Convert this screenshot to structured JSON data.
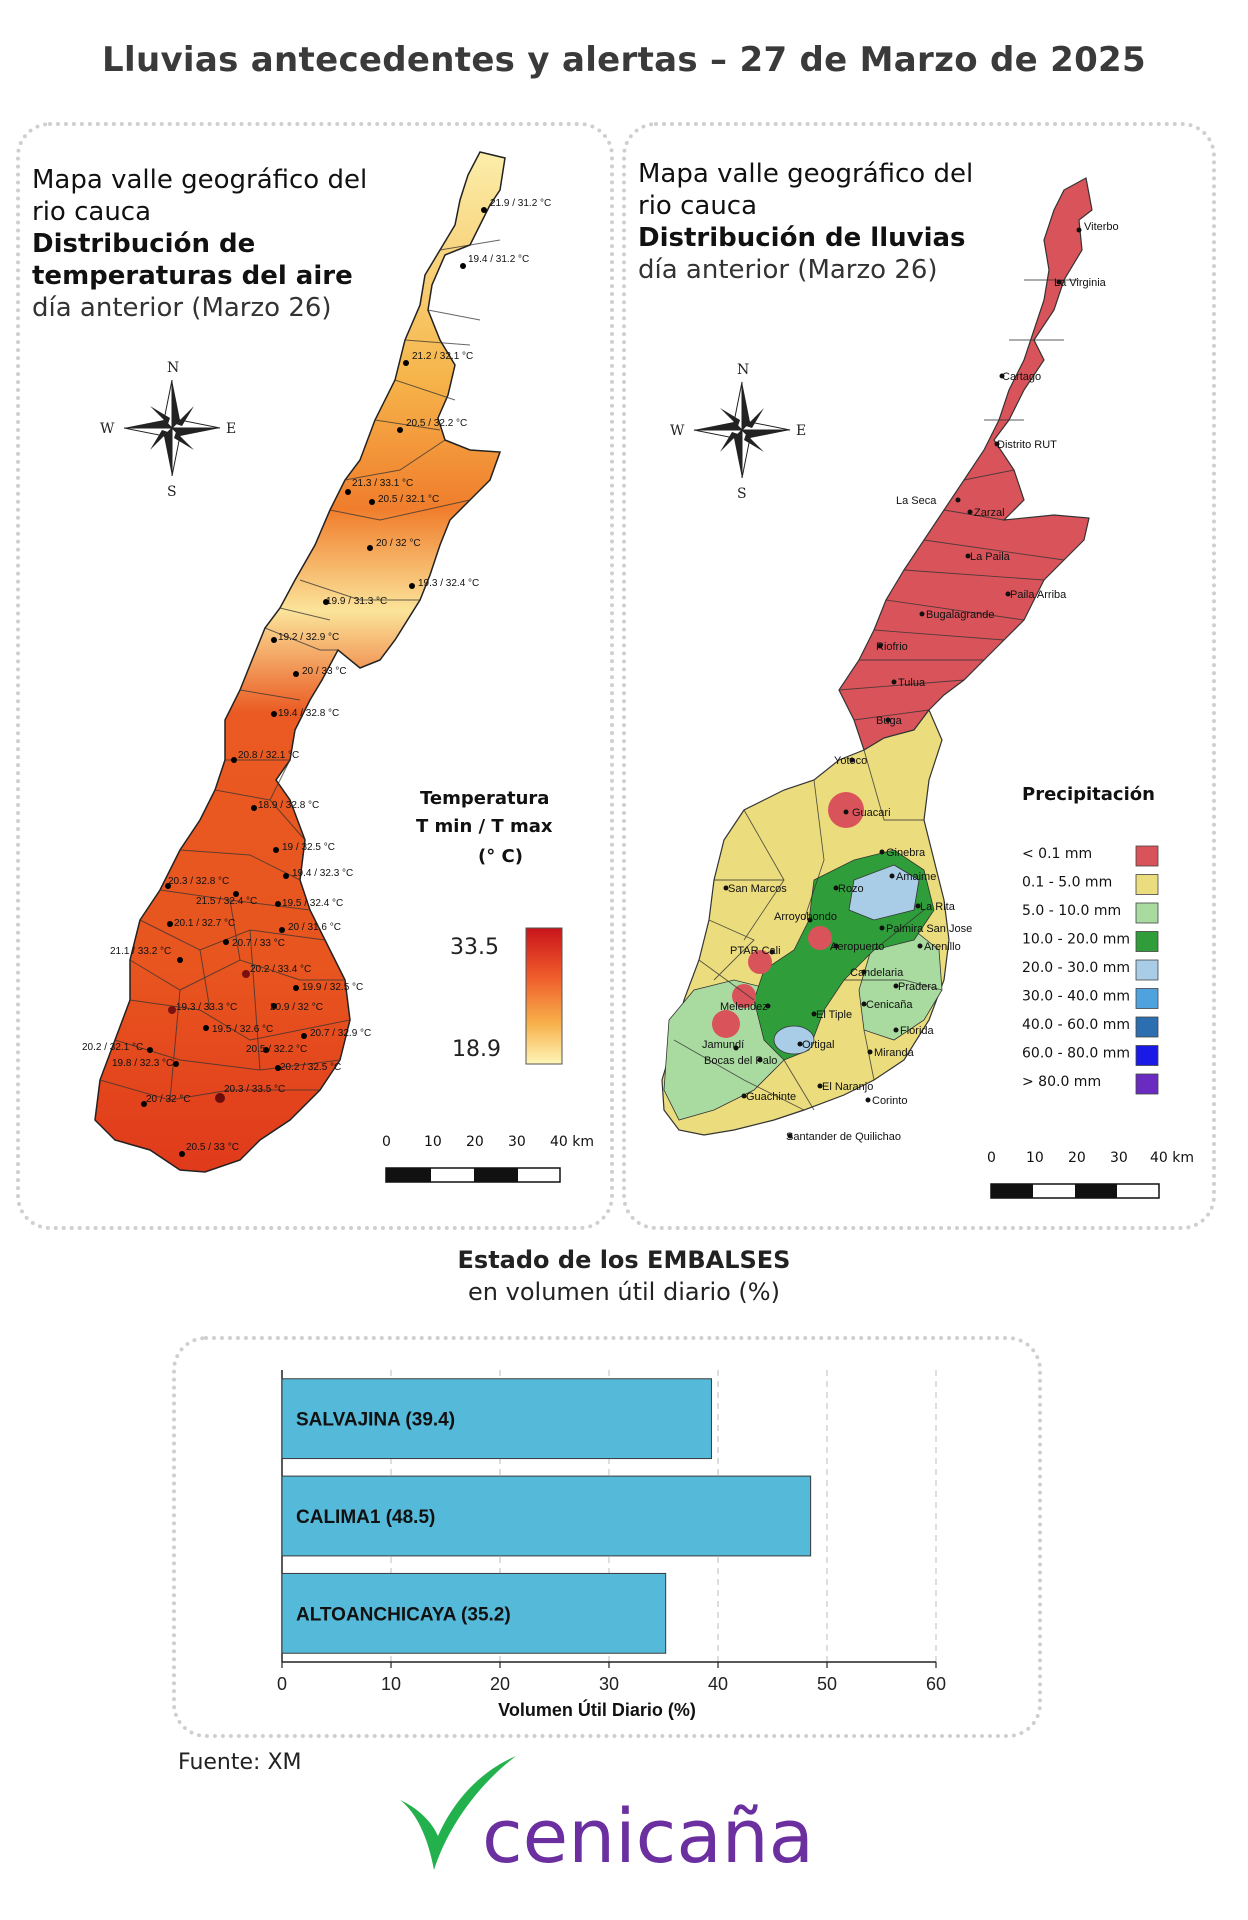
{
  "header": {
    "title": "Lluvias antecedentes y alertas – 27 de Marzo de 2025"
  },
  "temp_panel": {
    "title_line1": "Mapa valle geográfico del",
    "title_line2": "rio cauca",
    "title_line3": "Distribución de",
    "title_line4": "temperaturas del aire",
    "title_line5": "día anterior (Marzo 26)",
    "legend_title1": "Temperatura",
    "legend_title2": "T min / T max",
    "legend_title3": "(° C)",
    "legend_max": "33.5",
    "legend_min": "18.9",
    "stations": [
      "21.9 / 31.2 °C",
      "19.4 / 31.2 °C",
      "21.2 / 32.1 °C",
      "20.5 / 32.2 °C",
      "21.3 / 33.1 °C",
      "20.5 / 32.1 °C",
      "20 / 32 °C",
      "19.3 / 32.4 °C",
      "19.9 / 31.3 °C",
      "19.2 / 32.9 °C",
      "20 / 33 °C",
      "19.4 / 32.8 °C",
      "20.8 / 32.1 °C",
      "18.9 / 32.8 °C",
      "19 / 32.5 °C",
      "20.3 / 32.8 °C",
      "19.4 / 32.3 °C",
      "21.5 / 32.4 °C",
      "19.5 / 32.4 °C",
      "20.1 / 32.7 °C",
      "20 / 31.6 °C",
      "20.7 / 33 °C",
      "21.1 / 33.2 °C",
      "20.2 / 33.4 °C",
      "19.9 / 32.5 °C",
      "19.3 / 33.3 °C",
      "20.9 / 32 °C",
      "19.5 / 32.6 °C",
      "20.7 / 32.9 °C",
      "20.2 / 32.1 °C",
      "20.5 / 32.2 °C",
      "19.8 / 32.3 °C",
      "20.2 / 32.5 °C",
      "20 / 32 °C",
      "20.3 / 33.5 °C",
      "20.5 / 33 °C"
    ]
  },
  "rain_panel": {
    "title_line1": "Mapa valle geográfico del",
    "title_line2": "rio cauca",
    "title_line3": "Distribución de lluvias",
    "title_line4": "día anterior (Marzo 26)",
    "legend_title": "Precipitación",
    "legend": [
      {
        "label": "< 0.1 mm",
        "color": "#d9535a"
      },
      {
        "label": "0.1 - 5.0 mm",
        "color": "#ebdc7d"
      },
      {
        "label": "5.0 - 10.0 mm",
        "color": "#a9dba0"
      },
      {
        "label": "10.0 - 20.0 mm",
        "color": "#2f9e3a"
      },
      {
        "label": "20.0 - 30.0 mm",
        "color": "#a9cde6"
      },
      {
        "label": "30.0 - 40.0 mm",
        "color": "#4ea3de"
      },
      {
        "label": "40.0 - 60.0 mm",
        "color": "#2c6fb0"
      },
      {
        "label": "60.0 - 80.0 mm",
        "color": "#1a1ae6"
      },
      {
        "label": "> 80.0 mm",
        "color": "#6a2cc0"
      }
    ],
    "stations": [
      "Viterbo",
      "La Virginia",
      "Cartago",
      "Distrito RUT",
      "La Seca",
      "Zarzal",
      "La Paila",
      "Paila Arriba",
      "Bugalagrande",
      "Riofrio",
      "Tulua",
      "Buga",
      "Yotoco",
      "Guacari",
      "Ginebra",
      "Amaime",
      "San Marcos",
      "Rozo",
      "La Rita",
      "Arroyohondo",
      "Palmira San Jose",
      "PTAR Cali",
      "Aeropuerto",
      "Arenillo",
      "Candelaria",
      "Pradera",
      "Melendez",
      "El Tiple",
      "Cenicaña",
      "Florida",
      "Jamundí",
      "Bocas del Palo",
      "Ortigal",
      "Miranda",
      "El Naranjo",
      "Guachinte",
      "Corinto",
      "Santander de Quilichao"
    ]
  },
  "compass": {
    "n": "N",
    "s": "S",
    "e": "E",
    "w": "W"
  },
  "scale": {
    "labels": [
      "0",
      "10",
      "20",
      "30",
      "40 km"
    ]
  },
  "reservoirs": {
    "title": "Estado de los EMBALSES",
    "subtitle": "en volumen útil diario (%)",
    "xlabel": "Volumen Útil Diario (%)",
    "source": "Fuente: XM"
  },
  "chart_data": {
    "type": "bar",
    "orientation": "horizontal",
    "categories": [
      "SALVAJINA (39.4)",
      "CALIMA1 (48.5)",
      "ALTOANCHICAYA (35.2)"
    ],
    "values": [
      39.4,
      48.5,
      35.2
    ],
    "xlabel": "Volumen Útil Diario (%)",
    "xlim": [
      0,
      60
    ],
    "xticks": [
      0,
      10,
      20,
      30,
      40,
      50,
      60
    ],
    "grid": "vertical dashed",
    "bar_color": "#55b9d9"
  },
  "logo": {
    "text": "cenicaña",
    "color": "#6b2fa0",
    "accent": "#22b14c"
  }
}
